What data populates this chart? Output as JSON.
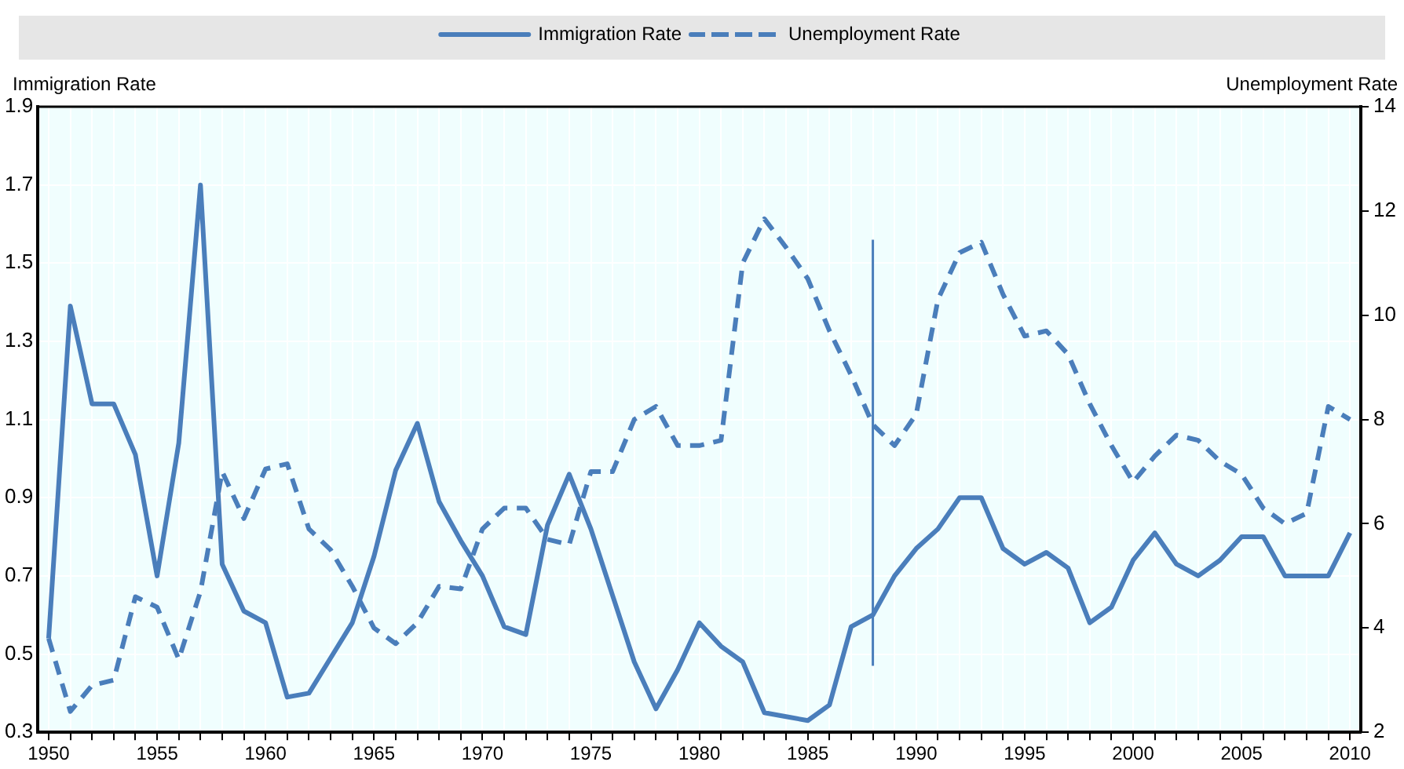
{
  "chart_data": {
    "type": "line",
    "ylabel": "Immigration Rate",
    "y2label": "Unemployment Rate",
    "x": [
      1950,
      1951,
      1952,
      1953,
      1954,
      1955,
      1956,
      1957,
      1958,
      1959,
      1960,
      1961,
      1962,
      1963,
      1964,
      1965,
      1966,
      1967,
      1968,
      1969,
      1970,
      1971,
      1972,
      1973,
      1974,
      1975,
      1976,
      1977,
      1978,
      1979,
      1980,
      1981,
      1982,
      1983,
      1984,
      1985,
      1986,
      1987,
      1988,
      1989,
      1990,
      1991,
      1992,
      1993,
      1994,
      1995,
      1996,
      1997,
      1998,
      1999,
      2000,
      2001,
      2002,
      2003,
      2004,
      2005,
      2006,
      2007,
      2008,
      2009,
      2010
    ],
    "series": [
      {
        "name": "Immigration Rate",
        "color": "#4a7ebb",
        "line_style": "solid",
        "values": [
          0.54,
          1.39,
          1.14,
          1.14,
          1.01,
          0.7,
          1.04,
          1.7,
          0.73,
          0.61,
          0.58,
          0.39,
          0.4,
          0.49,
          0.58,
          0.75,
          0.97,
          1.09,
          0.89,
          0.79,
          0.7,
          0.57,
          0.55,
          0.83,
          0.96,
          0.82,
          0.65,
          0.48,
          0.36,
          0.46,
          0.58,
          0.52,
          0.48,
          0.35,
          0.34,
          0.33,
          0.37,
          0.57,
          0.6,
          0.7,
          0.77,
          0.82,
          0.9,
          0.9,
          0.77,
          0.73,
          0.76,
          0.72,
          0.58,
          0.62,
          0.74,
          0.81,
          0.73,
          0.7,
          0.74,
          0.8,
          0.8,
          0.7,
          0.7,
          0.7,
          0.81
        ]
      },
      {
        "name": "Unemployment Rate",
        "color": "#4a7ebb",
        "line_style": "dashed",
        "axis": "y2",
        "values": [
          3.8,
          2.4,
          2.9,
          3.0,
          4.6,
          4.4,
          3.4,
          4.7,
          7.0,
          6.1,
          7.05,
          7.15,
          5.9,
          5.5,
          4.8,
          4.0,
          3.7,
          4.1,
          4.8,
          4.75,
          5.9,
          6.3,
          6.3,
          5.7,
          5.6,
          7.0,
          7.0,
          8.0,
          8.25,
          7.5,
          7.5,
          7.6,
          11.0,
          11.85,
          11.3,
          10.7,
          9.7,
          8.85,
          7.9,
          7.5,
          8.1,
          10.3,
          11.2,
          11.4,
          10.4,
          9.6,
          9.7,
          9.25,
          8.3,
          7.5,
          6.8,
          7.3,
          7.7,
          7.6,
          7.2,
          6.95,
          6.3,
          6.0,
          6.2,
          8.25,
          8.0
        ]
      },
      {
        "type": "line",
        "color": "#4a7ebb",
        "line_style": "solid",
        "x": [
          1988,
          1988
        ],
        "values": [
          0.47,
          1.56
        ]
      }
    ],
    "xlim": [
      1949.5,
      2010.5
    ],
    "xticks": [
      1950,
      {
        "value": 1951,
        "label": null
      },
      {
        "value": 1952,
        "label": null
      },
      {
        "value": 1953,
        "label": null
      },
      {
        "value": 1954,
        "label": null
      },
      1955,
      {
        "value": 1956,
        "label": null
      },
      {
        "value": 1957,
        "label": null
      },
      {
        "value": 1958,
        "label": null
      },
      {
        "value": 1959,
        "label": null
      },
      1960,
      {
        "value": 1961,
        "label": null
      },
      {
        "value": 1962,
        "label": null
      },
      {
        "value": 1963,
        "label": null
      },
      {
        "value": 1964,
        "label": null
      },
      1965,
      {
        "value": 1966,
        "label": null
      },
      {
        "value": 1967,
        "label": null
      },
      {
        "value": 1968,
        "label": null
      },
      {
        "value": 1969,
        "label": null
      },
      1970,
      {
        "value": 1971,
        "label": null
      },
      {
        "value": 1972,
        "label": null
      },
      {
        "value": 1973,
        "label": null
      },
      {
        "value": 1974,
        "label": null
      },
      1975,
      {
        "value": 1976,
        "label": null
      },
      {
        "value": 1977,
        "label": null
      },
      {
        "value": 1978,
        "label": null
      },
      {
        "value": 1979,
        "label": null
      },
      1980,
      {
        "value": 1981,
        "label": null
      },
      {
        "value": 1982,
        "label": null
      },
      {
        "value": 1983,
        "label": null
      },
      {
        "value": 1984,
        "label": null
      },
      1985,
      {
        "value": 1986,
        "label": null
      },
      {
        "value": 1987,
        "label": null
      },
      {
        "value": 1988,
        "label": null
      },
      {
        "value": 1989,
        "label": null
      },
      1990,
      {
        "value": 1991,
        "label": null
      },
      {
        "value": 1992,
        "label": null
      },
      {
        "value": 1993,
        "label": null
      },
      {
        "value": 1994,
        "label": null
      },
      1995,
      {
        "value": 1996,
        "label": null
      },
      {
        "value": 1997,
        "label": null
      },
      {
        "value": 1998,
        "label": null
      },
      {
        "value": 1999,
        "label": null
      },
      2000,
      {
        "value": 2001,
        "label": null
      },
      {
        "value": 2002,
        "label": null
      },
      {
        "value": 2003,
        "label": null
      },
      {
        "value": 2004,
        "label": null
      },
      2005,
      {
        "value": 2006,
        "label": null
      },
      {
        "value": 2007,
        "label": null
      },
      {
        "value": 2008,
        "label": null
      },
      {
        "value": 2009,
        "label": null
      },
      2010
    ],
    "ylim": [
      0.3,
      1.9
    ],
    "yticks": [
      0.3,
      0.5,
      0.7,
      0.9,
      1.1,
      1.3,
      1.5,
      1.7,
      1.9
    ],
    "y2lim": [
      2,
      14
    ],
    "y2ticks": [
      2,
      4,
      6,
      8,
      10,
      12,
      14
    ],
    "grid": true,
    "legend": "top",
    "marker": "none"
  }
}
